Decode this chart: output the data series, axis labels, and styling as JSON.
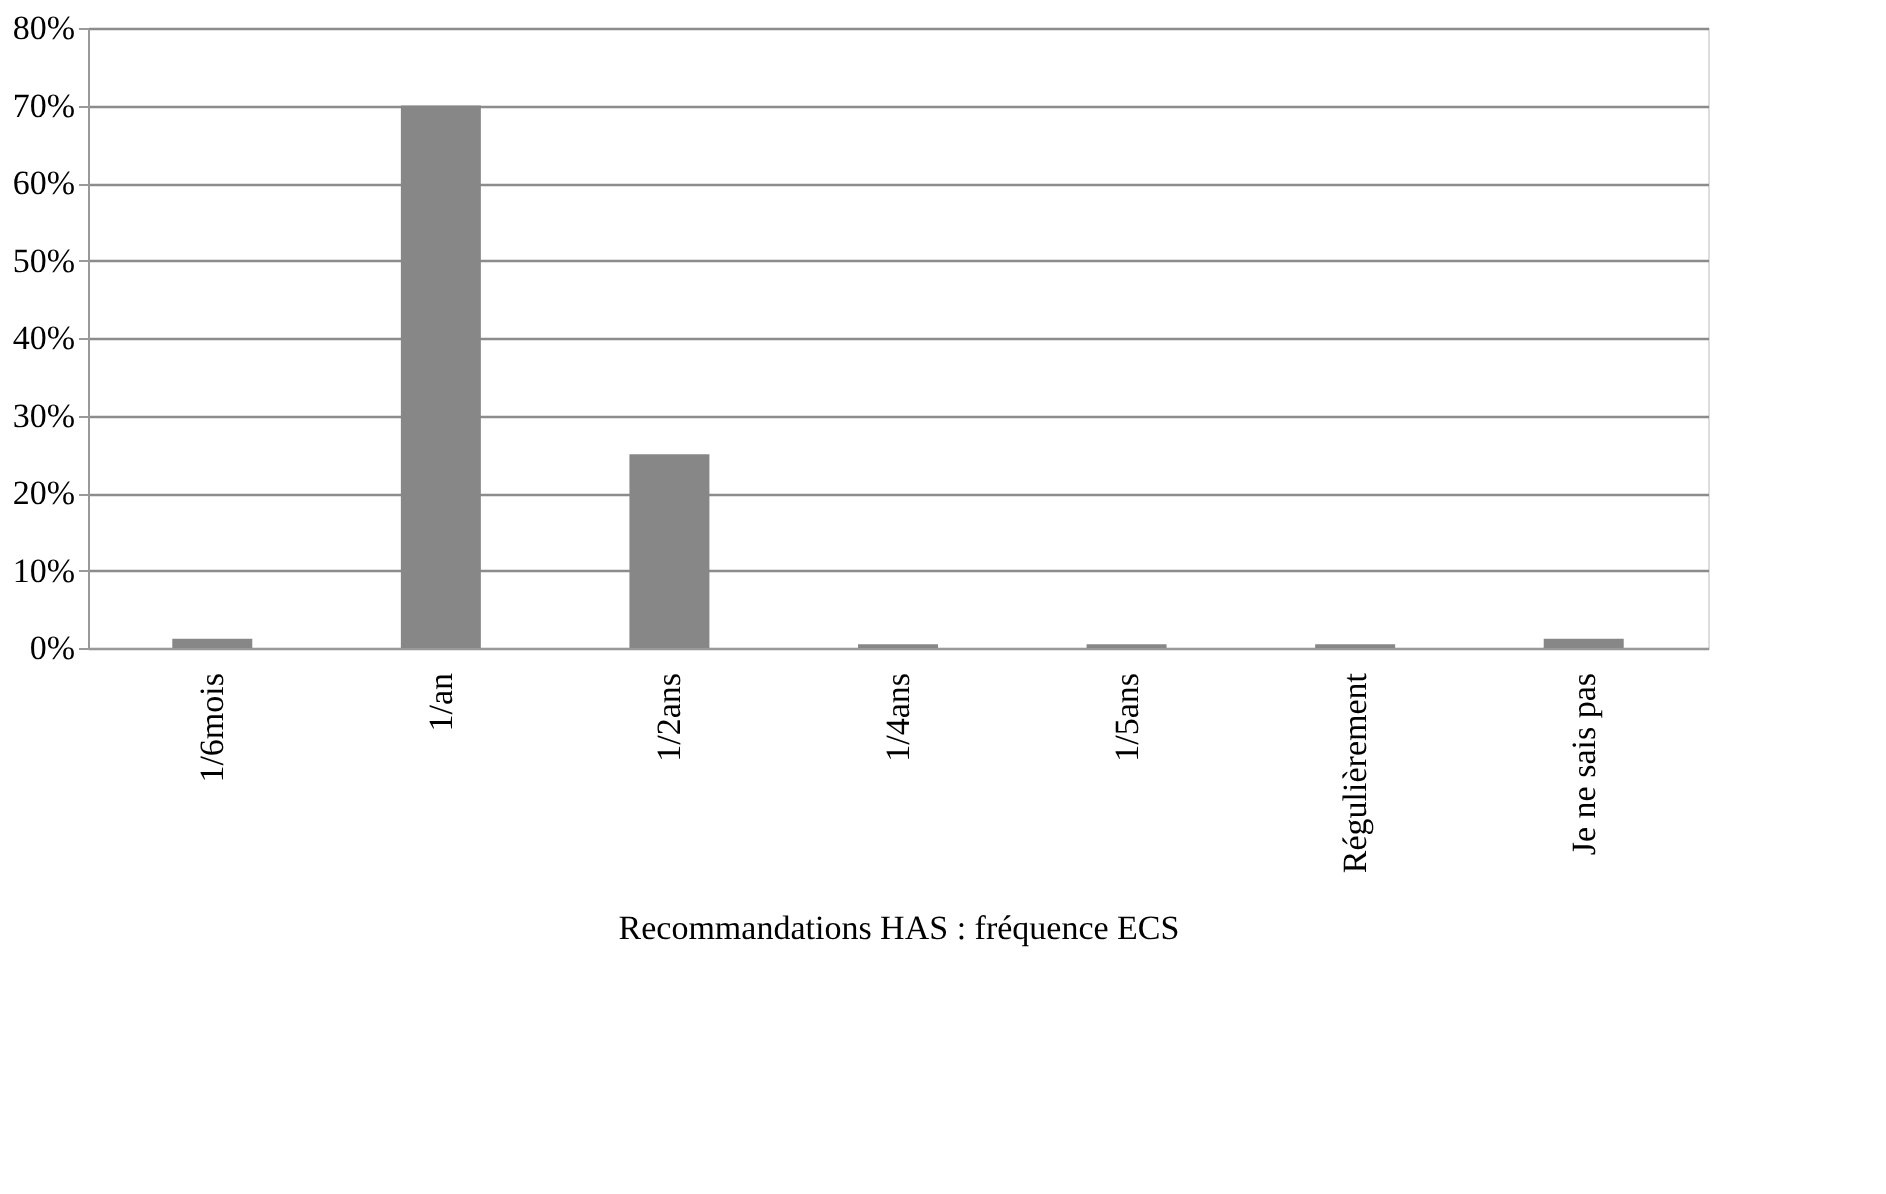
{
  "chart_data": {
    "type": "bar",
    "xlabel": "Recommandations HAS : fréquence ECS",
    "categories": [
      "1/6mois",
      "1/an",
      "1/2ans",
      "1/4ans",
      "1/5ans",
      "Régulièrement",
      "Je ne sais pas"
    ],
    "values": [
      1.2,
      70,
      25,
      0.5,
      0.5,
      0.5,
      1.2
    ],
    "color": "#878787",
    "ylim": [
      0,
      80
    ],
    "yticks": [
      {
        "value": 0,
        "label": "0%"
      },
      {
        "value": 10,
        "label": "10%"
      },
      {
        "value": 20,
        "label": "20%"
      },
      {
        "value": 30,
        "label": "30%"
      },
      {
        "value": 40,
        "label": "40%"
      },
      {
        "value": 50,
        "label": "50%"
      },
      {
        "value": 60,
        "label": "60%"
      },
      {
        "value": 70,
        "label": "70%"
      },
      {
        "value": 80,
        "label": "80%"
      }
    ],
    "grid": "y"
  }
}
